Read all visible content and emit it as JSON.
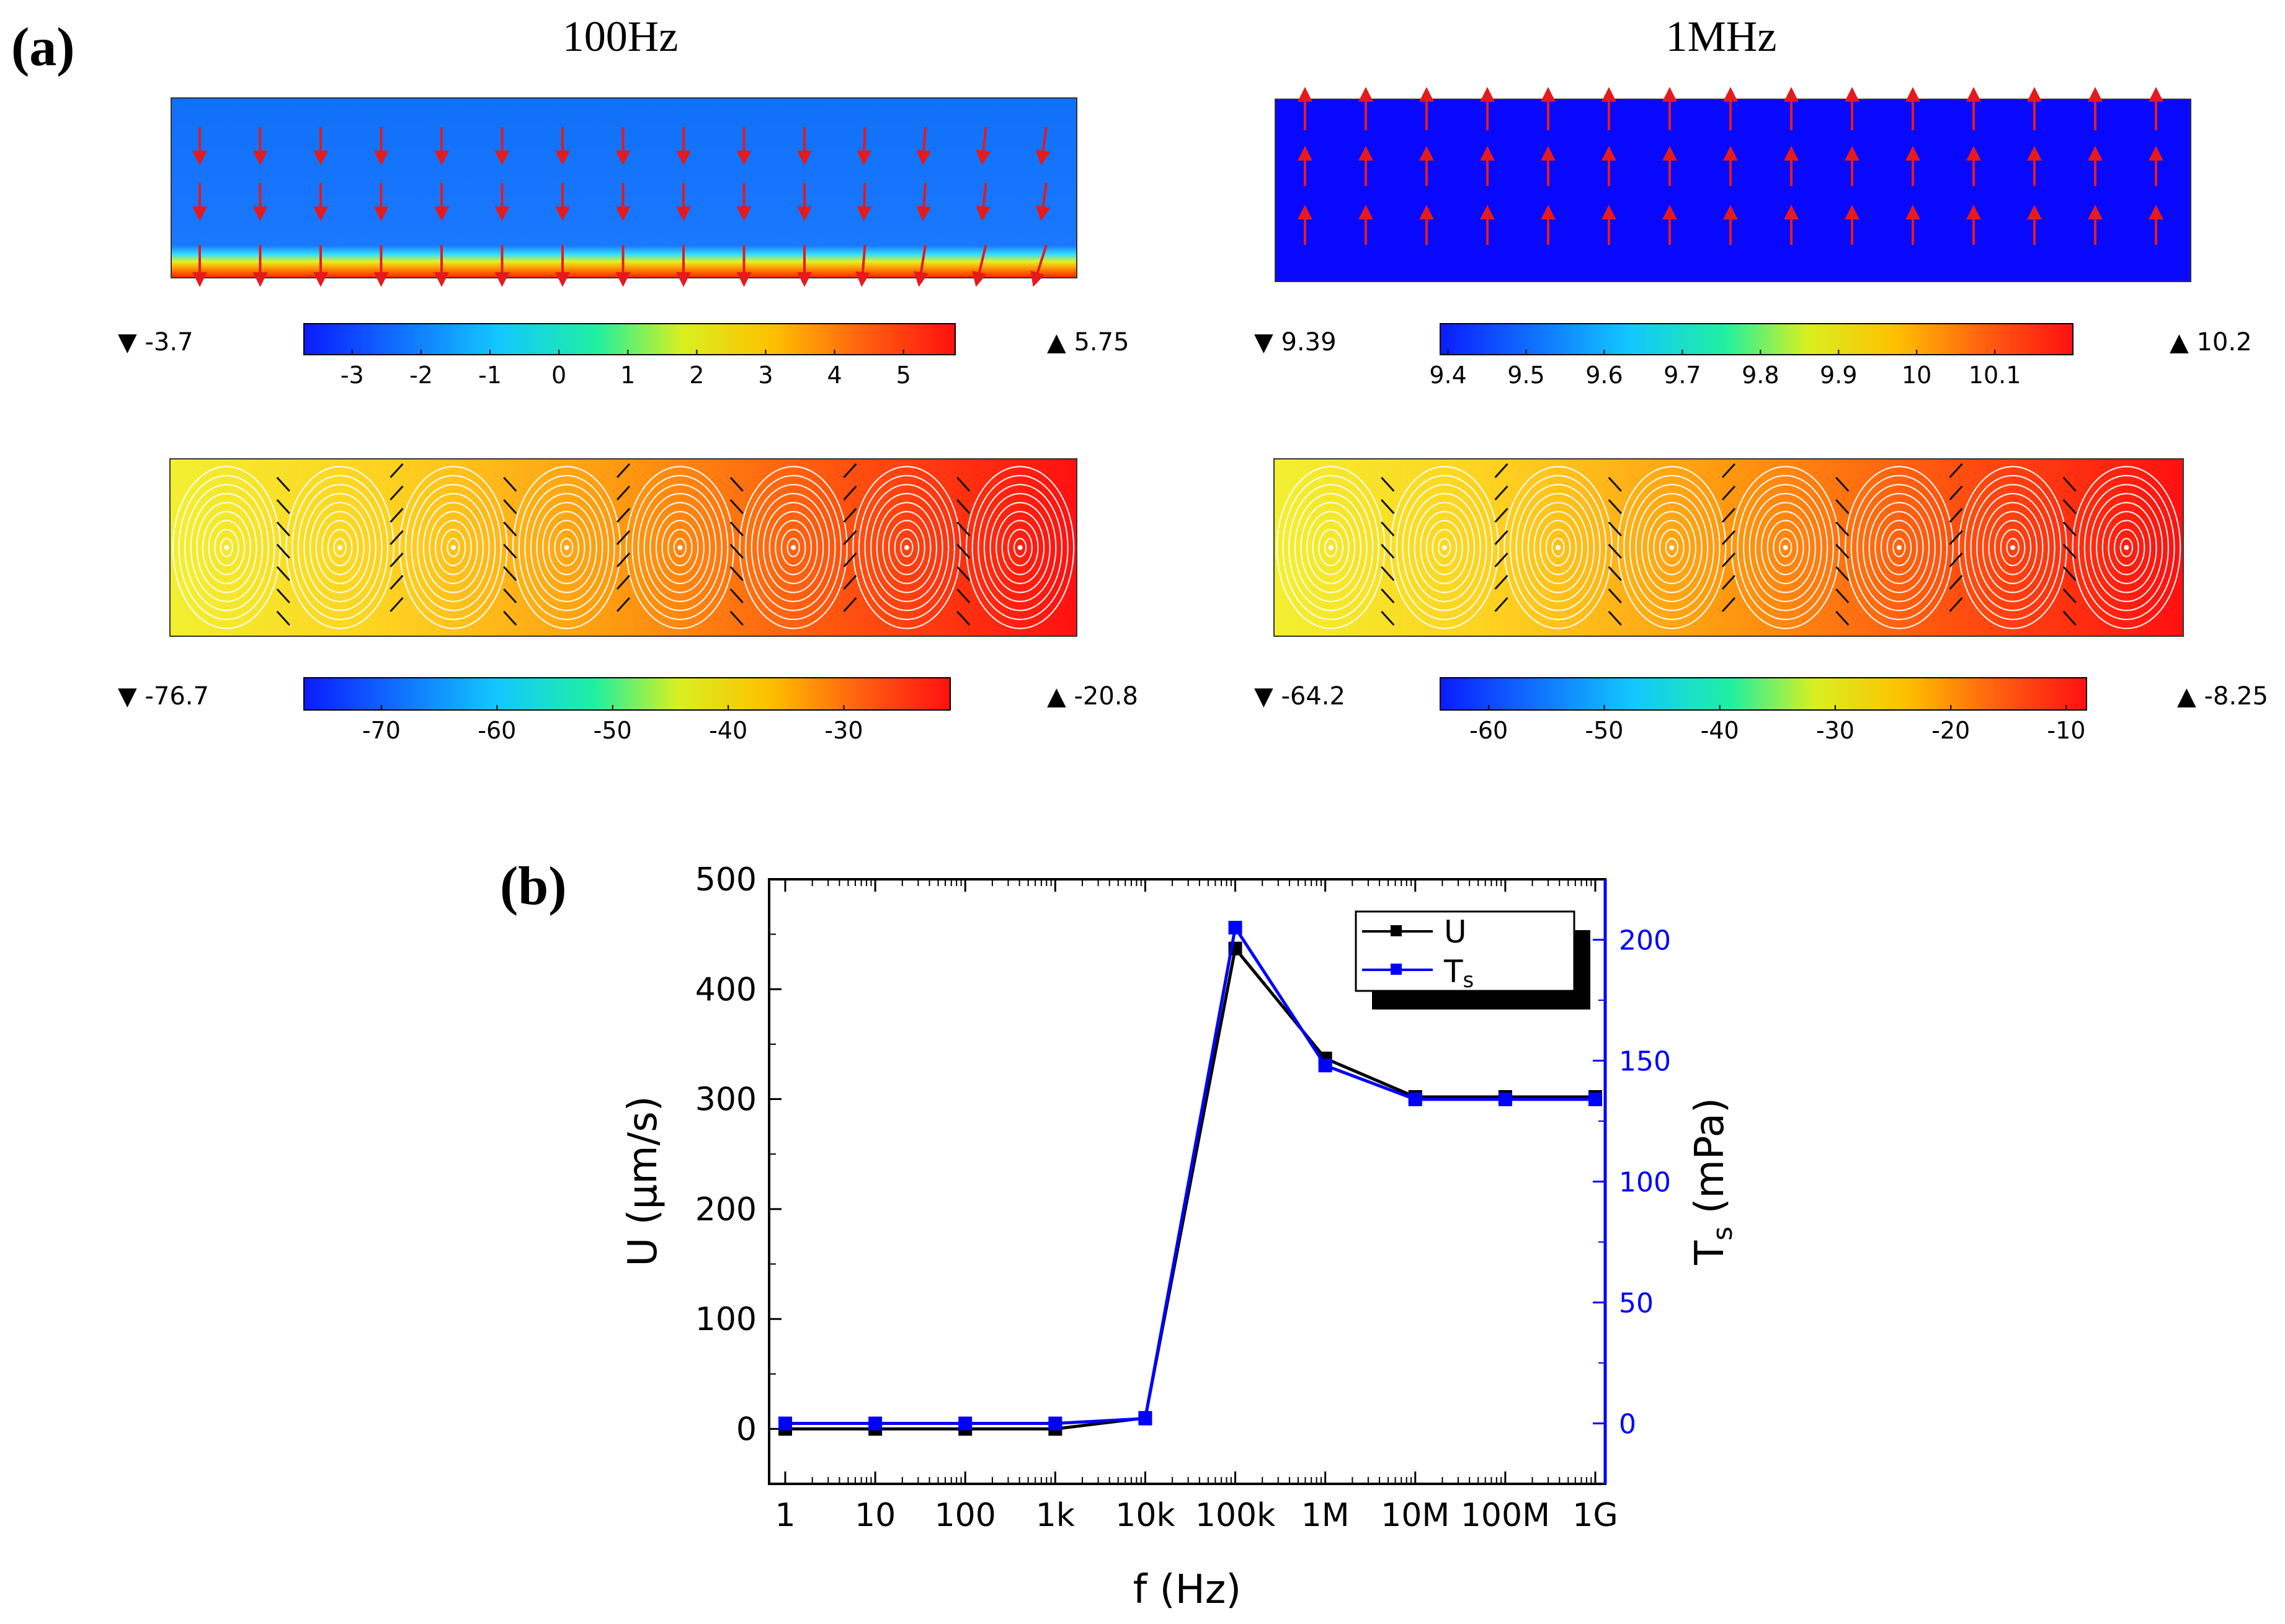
{
  "panel_a": {
    "label": "(a)",
    "col_left_title": "100Hz",
    "col_right_title": "1MHz",
    "colorbars": [
      {
        "min_label": "-3.7",
        "max_label": "5.75",
        "ticks": [
          "-3",
          "-2",
          "-1",
          "0",
          "1",
          "2",
          "3",
          "4",
          "5"
        ],
        "range": [
          -3.7,
          5.75
        ]
      },
      {
        "min_label": "9.39",
        "max_label": "10.2",
        "ticks": [
          "9.4",
          "9.5",
          "9.6",
          "9.7",
          "9.8",
          "9.9",
          "10",
          "10.1"
        ],
        "range": [
          9.39,
          10.2
        ]
      },
      {
        "min_label": "-76.7",
        "max_label": "-20.8",
        "ticks": [
          "-70",
          "-60",
          "-50",
          "-40",
          "-30"
        ],
        "range": [
          -76.7,
          -20.8
        ]
      },
      {
        "min_label": "-64.2",
        "max_label": "-8.25",
        "ticks": [
          "-60",
          "-50",
          "-40",
          "-30",
          "-20",
          "-10"
        ],
        "range": [
          -64.2,
          -8.25
        ]
      }
    ],
    "min_symbol": "▼",
    "max_symbol": "▲",
    "colors": {
      "jet_low": "#1a3cff",
      "jet_high": "#ff1010",
      "arrow": "#e41a1c"
    }
  },
  "chart_data": {
    "type": "line",
    "label": "(b)",
    "xlabel": "f (Hz)",
    "x_scale": "log",
    "x": [
      1,
      10,
      100,
      1000,
      10000,
      100000,
      1000000,
      10000000,
      100000000,
      1000000000
    ],
    "x_tick_labels": [
      "1",
      "10",
      "100",
      "1k",
      "10k",
      "100k",
      "1M",
      "10M",
      "100M",
      "1G"
    ],
    "ylabel_left": "U (μm/s)",
    "ylim_left": [
      -50,
      500
    ],
    "yticks_left": [
      "0",
      "100",
      "200",
      "300",
      "400",
      "500"
    ],
    "ylabel_right_main": "T",
    "ylabel_right_sub": "s",
    "ylabel_right_unit": " (mPa)",
    "ylim_right": [
      -25,
      225
    ],
    "yticks_right": [
      "0",
      "50",
      "100",
      "150",
      "200"
    ],
    "series": [
      {
        "name": "U",
        "axis": "left",
        "color": "#000000",
        "values": [
          0,
          0,
          0,
          0,
          10,
          437,
          337,
          302,
          302,
          302
        ]
      },
      {
        "name_main": "T",
        "name_sub": "s",
        "axis": "right",
        "color": "#0000ff",
        "values": [
          0,
          0,
          0,
          0,
          2,
          205,
          148,
          134,
          134,
          134
        ]
      }
    ],
    "legend": {
      "placement": "top-right",
      "entry1": "U",
      "entry2_main": "T",
      "entry2_sub": "s"
    }
  }
}
